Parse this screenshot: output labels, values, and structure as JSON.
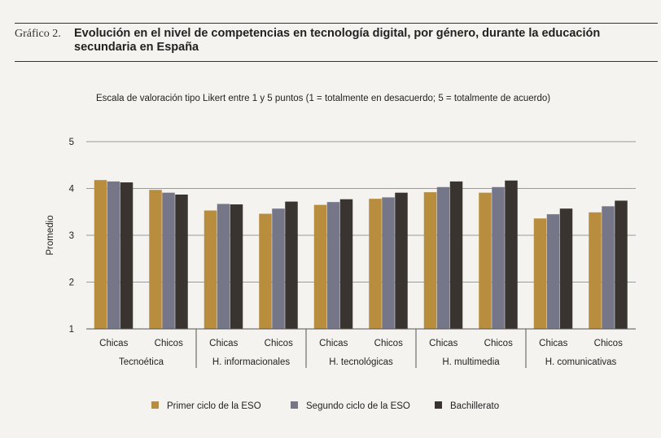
{
  "figure": {
    "label": "Gráfico 2.",
    "title": "Evolución en el nivel de competencias en tecnología digital, por género, durante la educación secundaria en España"
  },
  "chart_data": {
    "type": "bar",
    "subtitle": "Escala de valoración tipo Likert entre 1 y 5 puntos (1 = totalmente en desacuerdo; 5 = totalmente de acuerdo)",
    "ylabel": "Promedio",
    "xlabel": "",
    "ylim": [
      1,
      5
    ],
    "yticks": [
      1,
      2,
      3,
      4,
      5
    ],
    "grid": true,
    "legend_position": "bottom",
    "groups": [
      "Tecnoética",
      "H. informacionales",
      "H. tecnológicas",
      "H. multimedia",
      "H. comunicativas"
    ],
    "categories": [
      "Chicas",
      "Chicos",
      "Chicas",
      "Chicos",
      "Chicas",
      "Chicos",
      "Chicas",
      "Chicos",
      "Chicas",
      "Chicos"
    ],
    "series": [
      {
        "name": "Primer ciclo de la ESO",
        "color": "#b98d3e",
        "values": [
          4.18,
          3.97,
          3.53,
          3.46,
          3.65,
          3.78,
          3.92,
          3.91,
          3.36,
          3.49
        ]
      },
      {
        "name": "Segundo ciclo de la ESO",
        "color": "#757789",
        "values": [
          4.15,
          3.91,
          3.67,
          3.57,
          3.71,
          3.81,
          4.03,
          4.03,
          3.45,
          3.62
        ]
      },
      {
        "name": "Bachillerato",
        "color": "#3a3430",
        "values": [
          4.13,
          3.87,
          3.66,
          3.72,
          3.77,
          3.91,
          4.15,
          4.17,
          3.57,
          3.74
        ]
      }
    ]
  }
}
